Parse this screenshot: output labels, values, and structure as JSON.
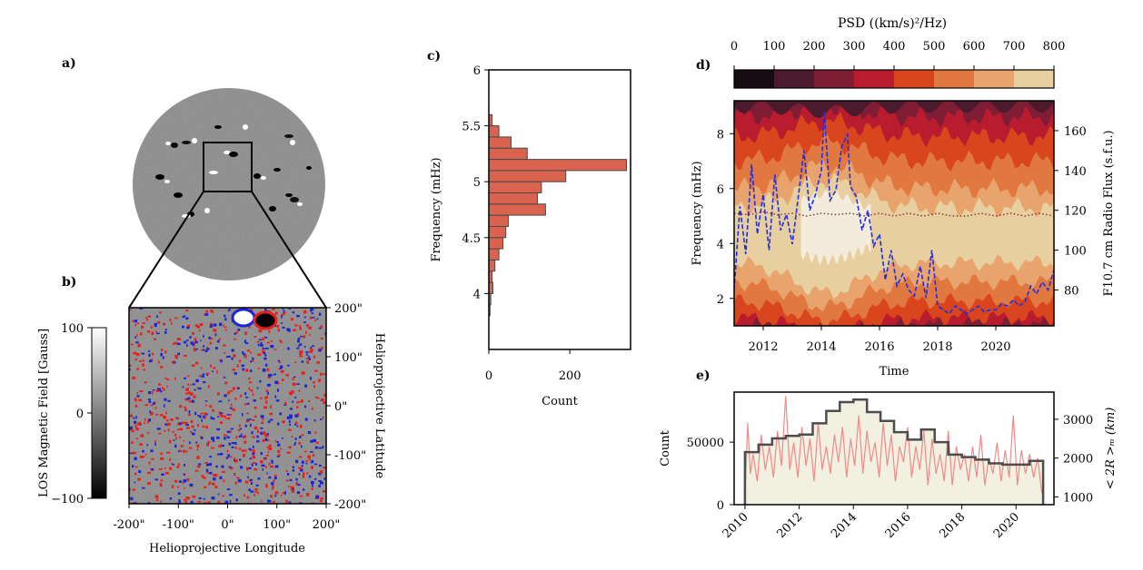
{
  "panels": {
    "a": "a)",
    "b": "b)",
    "c": "c)",
    "d": "d)",
    "e": "e)"
  },
  "colors": {
    "hist_fill": "#d9634f",
    "hist_edge": "#4a4a4a",
    "blue_line": "#1f2ee6",
    "dotted": "#8b2b3a",
    "pink_line": "#f08a8a",
    "step_fill": "#f2f0e1",
    "step_line": "#4d4d4d",
    "mag_gray": "#8a8a8a",
    "pos_red": "#e8201a",
    "neg_blue": "#1a24d9",
    "psd_levels": [
      "#170c12",
      "#4b1a2c",
      "#7f1d35",
      "#b81c2e",
      "#d9451c",
      "#e07840",
      "#e8a46c",
      "#e8cfa0",
      "#f3ecdc"
    ]
  },
  "chart_data": [
    {
      "panel": "a",
      "type": "other",
      "content": "full-disk magnetogram with zoom box"
    },
    {
      "panel": "b",
      "type": "heatmap",
      "xlabel": "Helioprojective Longitude",
      "ylabel": "Helioprojective Latitude",
      "xticks": [
        "-200\"",
        "-100\"",
        "0\"",
        "100\"",
        "200\""
      ],
      "yticks": [
        "200\"",
        "100\"",
        "0\"",
        "-100\"",
        "-200\""
      ],
      "xlim": [
        -200,
        200
      ],
      "ylim": [
        -200,
        200
      ],
      "colorbar": {
        "label": "LOS Magnetic Field [Gauss]",
        "ticks": [
          "100",
          "0",
          "−100"
        ],
        "range": [
          -100,
          100
        ]
      }
    },
    {
      "panel": "c",
      "type": "bar",
      "orientation": "horizontal",
      "xlabel": "Count",
      "ylabel": "Frequency (mHz)",
      "xticks": [
        "0",
        "200"
      ],
      "yticks": [
        "4",
        "4.5",
        "5",
        "5.5",
        "6"
      ],
      "xlim": [
        0,
        350
      ],
      "ylim": [
        3.5,
        6.0
      ],
      "bin_width": 0.1,
      "bins": [
        3.8,
        3.9,
        4.0,
        4.1,
        4.2,
        4.3,
        4.4,
        4.5,
        4.6,
        4.7,
        4.8,
        4.9,
        5.0,
        5.1,
        5.2,
        5.3,
        5.4,
        5.5
      ],
      "counts": [
        3,
        5,
        10,
        8,
        15,
        25,
        35,
        42,
        48,
        140,
        120,
        130,
        190,
        340,
        95,
        55,
        25,
        8
      ]
    },
    {
      "panel": "d",
      "type": "area",
      "xlabel": "Time",
      "ylabel": "Frequency (mHz)",
      "y2label": "F10.7 cm Radio Flux (s.f.u.)",
      "xticks": [
        "2012",
        "2014",
        "2016",
        "2018",
        "2020"
      ],
      "yticks": [
        "2",
        "4",
        "6",
        "8"
      ],
      "y2ticks": [
        "80",
        "100",
        "120",
        "140",
        "160"
      ],
      "xlim": [
        2011.0,
        2022.0
      ],
      "ylim": [
        1.0,
        9.2
      ],
      "y2lim": [
        62,
        175
      ],
      "colorbar": {
        "label": "PSD ((km/s)²/Hz)",
        "ticks": [
          "0",
          "100",
          "200",
          "300",
          "400",
          "500",
          "600",
          "700",
          "800"
        ],
        "range": [
          0,
          800
        ]
      },
      "f107": {
        "x": [
          2011.0,
          2011.2,
          2011.4,
          2011.6,
          2011.8,
          2012.0,
          2012.2,
          2012.4,
          2012.6,
          2012.8,
          2013.0,
          2013.2,
          2013.4,
          2013.6,
          2013.8,
          2014.0,
          2014.1,
          2014.3,
          2014.5,
          2014.7,
          2014.9,
          2015.0,
          2015.2,
          2015.4,
          2015.6,
          2015.8,
          2016.0,
          2016.2,
          2016.4,
          2016.6,
          2016.8,
          2017.0,
          2017.2,
          2017.4,
          2017.6,
          2017.8,
          2018.0,
          2018.2,
          2018.4,
          2018.6,
          2018.8,
          2019.0,
          2019.2,
          2019.4,
          2019.6,
          2019.8,
          2020.0,
          2020.2,
          2020.4,
          2020.6,
          2020.8,
          2021.0,
          2021.2,
          2021.4,
          2021.6,
          2021.8,
          2022.0
        ],
        "y": [
          80,
          122,
          98,
          143,
          108,
          128,
          100,
          138,
          110,
          118,
          103,
          126,
          150,
          120,
          128,
          140,
          170,
          125,
          130,
          152,
          158,
          132,
          127,
          110,
          120,
          102,
          108,
          85,
          100,
          82,
          88,
          80,
          77,
          92,
          76,
          100,
          72,
          70,
          68,
          72,
          70,
          68,
          70,
          72,
          69,
          70,
          70,
          73,
          72,
          75,
          72,
          74,
          82,
          78,
          84,
          80,
          90
        ]
      },
      "peak_freq": {
        "x": [
          2011.0,
          2011.5,
          2012.0,
          2012.5,
          2013.0,
          2013.5,
          2014.0,
          2014.5,
          2015.0,
          2015.5,
          2016.0,
          2016.5,
          2017.0,
          2017.5,
          2018.0,
          2018.5,
          2019.0,
          2019.5,
          2020.0,
          2020.5,
          2021.0,
          2021.5,
          2022.0
        ],
        "y": [
          5.1,
          5.05,
          5.15,
          5.05,
          5.1,
          5.0,
          5.1,
          5.05,
          5.1,
          5.0,
          5.1,
          5.0,
          5.1,
          5.0,
          5.1,
          5.0,
          5.0,
          5.1,
          5.0,
          5.1,
          5.0,
          5.1,
          5.0
        ]
      }
    },
    {
      "panel": "e",
      "type": "line",
      "ylabel": "Count",
      "y2label": "< 2R >ₘ (km)",
      "xticks": [
        "2010",
        "2012",
        "2014",
        "2016",
        "2018",
        "2020"
      ],
      "yticks": [
        "0",
        "50000"
      ],
      "y2ticks": [
        "1000",
        "2000",
        "3000"
      ],
      "xlim": [
        2009.6,
        2021.4
      ],
      "ylim": [
        0,
        90000
      ],
      "y2lim": [
        800,
        3700
      ],
      "step": {
        "edges": [
          2010,
          2010.5,
          2011,
          2011.5,
          2012,
          2012.5,
          2013,
          2013.5,
          2014,
          2014.5,
          2015,
          2015.5,
          2016,
          2016.5,
          2017,
          2017.5,
          2018,
          2018.5,
          2019,
          2019.5,
          2020,
          2020.5,
          2021
        ],
        "counts": [
          42000,
          48000,
          53000,
          55000,
          56000,
          65000,
          75000,
          82000,
          84000,
          74000,
          67000,
          58000,
          52000,
          60000,
          50000,
          40000,
          38000,
          36000,
          33000,
          32000,
          32000,
          35000
        ]
      },
      "mean_diameter": {
        "x": [
          2010.0,
          2010.1,
          2010.2,
          2010.3,
          2010.45,
          2010.6,
          2010.75,
          2010.9,
          2011.05,
          2011.2,
          2011.35,
          2011.5,
          2011.65,
          2011.8,
          2011.95,
          2012.1,
          2012.25,
          2012.4,
          2012.55,
          2012.7,
          2012.85,
          2013.0,
          2013.15,
          2013.3,
          2013.45,
          2013.6,
          2013.75,
          2013.9,
          2014.05,
          2014.2,
          2014.35,
          2014.5,
          2014.65,
          2014.8,
          2014.95,
          2015.1,
          2015.25,
          2015.4,
          2015.55,
          2015.7,
          2015.85,
          2016.0,
          2016.15,
          2016.3,
          2016.45,
          2016.6,
          2016.75,
          2016.9,
          2017.05,
          2017.2,
          2017.35,
          2017.5,
          2017.65,
          2017.8,
          2017.95,
          2018.1,
          2018.25,
          2018.4,
          2018.55,
          2018.7,
          2018.85,
          2019.0,
          2019.15,
          2019.3,
          2019.45,
          2019.6,
          2019.75,
          2019.9,
          2020.05,
          2020.2,
          2020.35,
          2020.5,
          2020.65,
          2020.8,
          2020.95
        ],
        "y": [
          1000,
          2900,
          1600,
          2100,
          1400,
          2600,
          1700,
          2300,
          1500,
          2700,
          1800,
          3600,
          1700,
          2400,
          1500,
          2800,
          1800,
          2500,
          1400,
          2900,
          1700,
          2300,
          1600,
          2600,
          1900,
          2800,
          1500,
          2500,
          1800,
          3100,
          1600,
          2700,
          1900,
          2400,
          1500,
          2900,
          1800,
          2600,
          1400,
          2300,
          1900,
          2800,
          1500,
          2300,
          1700,
          2700,
          1300,
          2500,
          1600,
          2100,
          1400,
          2700,
          1300,
          2300,
          1700,
          2100,
          1400,
          2300,
          1500,
          2600,
          1300,
          2000,
          1600,
          2400,
          1400,
          2200,
          1500,
          3100,
          1300,
          2200,
          1600,
          2100,
          1500,
          2000,
          1100
        ]
      }
    }
  ]
}
